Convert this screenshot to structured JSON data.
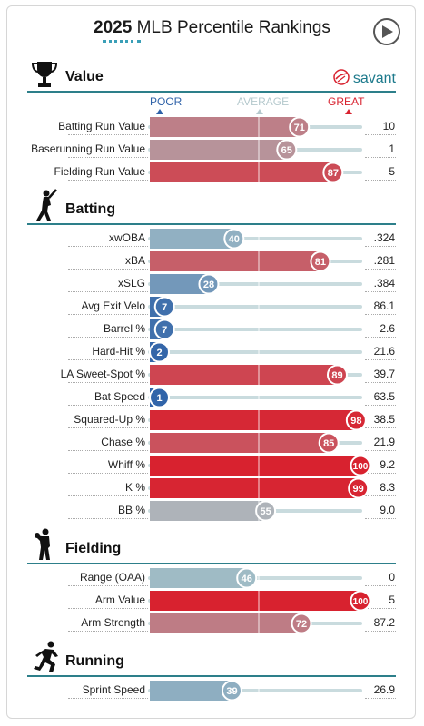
{
  "header": {
    "year": "2025",
    "title_rest": "MLB Percentile Rankings"
  },
  "brand": "savant",
  "legend": {
    "poor": "POOR",
    "average": "AVERAGE",
    "great": "GREAT"
  },
  "colors": {
    "accent": "#2d7f8a",
    "poor": "#2f62a8",
    "average": "#a9c3c8",
    "great": "#d8222f"
  },
  "chart_data": {
    "type": "bar",
    "title": "2025 MLB Percentile Rankings",
    "xlim": [
      0,
      100
    ],
    "sections": [
      {
        "title": "Value",
        "icon": "trophy-icon",
        "rows": [
          {
            "label": "Batting Run Value",
            "percentile": 71,
            "value": "10"
          },
          {
            "label": "Baserunning Run Value",
            "percentile": 65,
            "value": "1"
          },
          {
            "label": "Fielding Run Value",
            "percentile": 87,
            "value": "5"
          }
        ]
      },
      {
        "title": "Batting",
        "icon": "batter-icon",
        "rows": [
          {
            "label": "xwOBA",
            "percentile": 40,
            "value": ".324"
          },
          {
            "label": "xBA",
            "percentile": 81,
            "value": ".281"
          },
          {
            "label": "xSLG",
            "percentile": 28,
            "value": ".384"
          },
          {
            "label": "Avg Exit Velo",
            "percentile": 7,
            "value": "86.1"
          },
          {
            "label": "Barrel %",
            "percentile": 7,
            "value": "2.6"
          },
          {
            "label": "Hard-Hit %",
            "percentile": 2,
            "value": "21.6"
          },
          {
            "label": "LA Sweet-Spot %",
            "percentile": 89,
            "value": "39.7"
          },
          {
            "label": "Bat Speed",
            "percentile": 1,
            "value": "63.5"
          },
          {
            "label": "Squared-Up %",
            "percentile": 98,
            "value": "38.5"
          },
          {
            "label": "Chase %",
            "percentile": 85,
            "value": "21.9"
          },
          {
            "label": "Whiff %",
            "percentile": 100,
            "value": "9.2"
          },
          {
            "label": "K %",
            "percentile": 99,
            "value": "8.3"
          },
          {
            "label": "BB %",
            "percentile": 55,
            "value": "9.0"
          }
        ]
      },
      {
        "title": "Fielding",
        "icon": "fielder-icon",
        "rows": [
          {
            "label": "Range (OAA)",
            "percentile": 46,
            "value": "0"
          },
          {
            "label": "Arm Value",
            "percentile": 100,
            "value": "5"
          },
          {
            "label": "Arm Strength",
            "percentile": 72,
            "value": "87.2"
          }
        ]
      },
      {
        "title": "Running",
        "icon": "runner-icon",
        "rows": [
          {
            "label": "Sprint Speed",
            "percentile": 39,
            "value": "26.9"
          }
        ]
      }
    ]
  }
}
